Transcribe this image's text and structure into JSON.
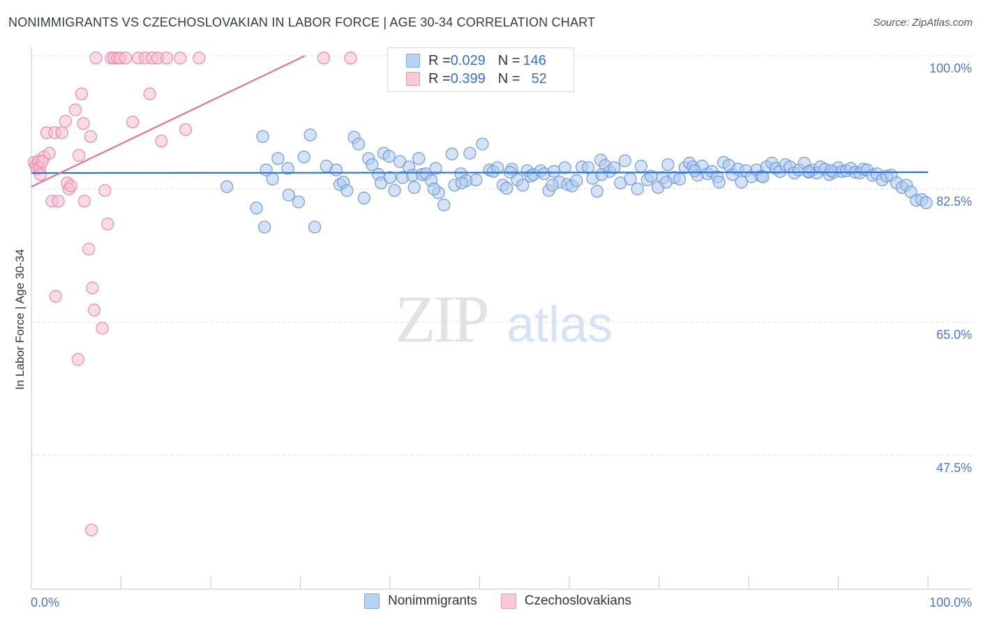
{
  "title": "NONIMMIGRANTS VS CZECHOSLOVAKIAN IN LABOR FORCE | AGE 30-34 CORRELATION CHART",
  "source": "Source: ZipAtlas.com",
  "watermark": {
    "zip": "ZIP",
    "atlas": "atlas"
  },
  "legend": {
    "rows": [
      {
        "r_label": "R = ",
        "r_value": "0.029",
        "n_label": "N = ",
        "n_value": "146",
        "color": "#a8c8f0"
      },
      {
        "r_label": "R = ",
        "r_value": "0.399",
        "n_label": "N = ",
        "n_value": "52",
        "color": "#f6b5c8"
      }
    ]
  },
  "colors": {
    "blue_fill": "#aecbf0",
    "blue_stroke": "#6f9ad8",
    "blue_line": "#2f6fd0",
    "pink_fill": "#f7c0d0",
    "pink_stroke": "#e58aa8",
    "pink_line": "#e8709a",
    "grid": "#d8dde6",
    "axis_text": "#4a78c8"
  },
  "chart_data": {
    "type": "scatter",
    "title": "NONIMMIGRANTS VS CZECHOSLOVAKIAN IN LABOR FORCE | AGE 30-34 CORRELATION CHART",
    "xlabel": "",
    "ylabel": "In Labor Force | Age 30-34",
    "xlim": [
      0,
      100
    ],
    "ylim": [
      30,
      101.5
    ],
    "x_ticks": [
      "0.0%",
      "100.0%"
    ],
    "y_ticks": [
      {
        "value": 100.0,
        "label": "100.0%"
      },
      {
        "value": 82.5,
        "label": "82.5%"
      },
      {
        "value": 65.0,
        "label": "65.0%"
      },
      {
        "value": 47.5,
        "label": "47.5%"
      }
    ],
    "grid": true,
    "legend_position": "bottom-center",
    "series": [
      {
        "name": "Nonimmigrants",
        "r": 0.029,
        "n": 146,
        "trend": {
          "x": [
            0,
            100
          ],
          "y": [
            84.6,
            84.7
          ]
        },
        "points": [
          [
            21.8,
            82.8
          ],
          [
            25.1,
            80.0
          ],
          [
            25.8,
            89.4
          ],
          [
            26.2,
            85.0
          ],
          [
            26.0,
            77.5
          ],
          [
            26.9,
            83.8
          ],
          [
            27.5,
            86.5
          ],
          [
            28.6,
            85.2
          ],
          [
            28.7,
            81.7
          ],
          [
            29.8,
            80.8
          ],
          [
            30.4,
            86.7
          ],
          [
            31.1,
            89.6
          ],
          [
            31.6,
            77.5
          ],
          [
            32.9,
            85.5
          ],
          [
            34.0,
            85.0
          ],
          [
            34.4,
            83.1
          ],
          [
            34.8,
            83.4
          ],
          [
            35.2,
            82.3
          ],
          [
            36.0,
            89.3
          ],
          [
            36.5,
            88.4
          ],
          [
            37.1,
            81.3
          ],
          [
            37.6,
            86.5
          ],
          [
            38.0,
            85.7
          ],
          [
            38.7,
            84.4
          ],
          [
            39.3,
            87.2
          ],
          [
            39.9,
            86.8
          ],
          [
            39.0,
            83.3
          ],
          [
            40.5,
            82.3
          ],
          [
            41.1,
            86.1
          ],
          [
            41.4,
            84.0
          ],
          [
            42.1,
            85.4
          ],
          [
            42.5,
            84.3
          ],
          [
            43.2,
            86.5
          ],
          [
            43.6,
            84.4
          ],
          [
            44.0,
            84.5
          ],
          [
            44.6,
            83.6
          ],
          [
            45.1,
            85.2
          ],
          [
            45.4,
            82.0
          ],
          [
            46.0,
            80.4
          ],
          [
            46.9,
            87.1
          ],
          [
            47.2,
            83.0
          ],
          [
            47.9,
            84.5
          ],
          [
            48.5,
            83.6
          ],
          [
            48.9,
            87.2
          ],
          [
            49.6,
            83.7
          ],
          [
            50.3,
            88.4
          ],
          [
            51.1,
            85.0
          ],
          [
            51.5,
            84.8
          ],
          [
            52.0,
            85.3
          ],
          [
            52.6,
            83.0
          ],
          [
            53.0,
            82.6
          ],
          [
            53.6,
            85.1
          ],
          [
            54.2,
            83.7
          ],
          [
            54.8,
            83.0
          ],
          [
            55.3,
            84.9
          ],
          [
            55.7,
            84.2
          ],
          [
            56.0,
            84.4
          ],
          [
            56.8,
            84.9
          ],
          [
            57.2,
            84.5
          ],
          [
            57.7,
            82.3
          ],
          [
            58.3,
            84.8
          ],
          [
            58.9,
            83.4
          ],
          [
            59.5,
            85.3
          ],
          [
            59.8,
            83.1
          ],
          [
            60.3,
            82.9
          ],
          [
            60.8,
            83.6
          ],
          [
            61.4,
            85.4
          ],
          [
            62.1,
            85.3
          ],
          [
            62.6,
            83.9
          ],
          [
            63.1,
            82.2
          ],
          [
            63.5,
            86.3
          ],
          [
            64.0,
            85.6
          ],
          [
            64.5,
            84.8
          ],
          [
            65.0,
            85.3
          ],
          [
            65.7,
            83.3
          ],
          [
            66.2,
            86.2
          ],
          [
            66.8,
            83.8
          ],
          [
            67.6,
            82.5
          ],
          [
            68.0,
            85.5
          ],
          [
            68.7,
            83.7
          ],
          [
            69.1,
            84.2
          ],
          [
            69.9,
            82.7
          ],
          [
            70.4,
            84.0
          ],
          [
            71.0,
            85.7
          ],
          [
            71.7,
            84.0
          ],
          [
            72.3,
            83.8
          ],
          [
            72.9,
            85.3
          ],
          [
            73.4,
            85.9
          ],
          [
            73.8,
            85.4
          ],
          [
            74.3,
            84.3
          ],
          [
            74.8,
            85.5
          ],
          [
            75.4,
            84.5
          ],
          [
            75.9,
            84.8
          ],
          [
            76.5,
            84.1
          ],
          [
            77.2,
            86.0
          ],
          [
            77.8,
            85.6
          ],
          [
            78.2,
            84.4
          ],
          [
            78.8,
            85.1
          ],
          [
            79.2,
            83.4
          ],
          [
            79.7,
            84.9
          ],
          [
            80.3,
            84.1
          ],
          [
            80.9,
            85.0
          ],
          [
            81.4,
            84.2
          ],
          [
            82.0,
            85.4
          ],
          [
            82.6,
            85.9
          ],
          [
            83.0,
            85.2
          ],
          [
            83.5,
            84.8
          ],
          [
            84.1,
            85.7
          ],
          [
            84.6,
            85.4
          ],
          [
            85.1,
            84.6
          ],
          [
            85.6,
            85.0
          ],
          [
            86.2,
            85.9
          ],
          [
            86.7,
            84.7
          ],
          [
            87.1,
            85.0
          ],
          [
            87.6,
            84.6
          ],
          [
            88.0,
            85.4
          ],
          [
            88.5,
            85.1
          ],
          [
            89.0,
            84.4
          ],
          [
            89.5,
            84.7
          ],
          [
            90.0,
            85.3
          ],
          [
            90.4,
            84.8
          ],
          [
            90.9,
            84.9
          ],
          [
            91.4,
            85.2
          ],
          [
            91.9,
            84.7
          ],
          [
            92.4,
            84.6
          ],
          [
            92.8,
            85.1
          ],
          [
            93.2,
            85.0
          ],
          [
            93.8,
            84.3
          ],
          [
            94.3,
            84.5
          ],
          [
            94.9,
            83.7
          ],
          [
            95.4,
            84.2
          ],
          [
            95.9,
            84.3
          ],
          [
            96.5,
            83.3
          ],
          [
            97.1,
            82.7
          ],
          [
            97.6,
            83.0
          ],
          [
            98.1,
            82.1
          ],
          [
            98.7,
            81.0
          ],
          [
            99.3,
            81.1
          ],
          [
            99.8,
            80.7
          ],
          [
            63.6,
            84.4
          ],
          [
            70.8,
            83.4
          ],
          [
            74.0,
            84.9
          ],
          [
            76.7,
            83.4
          ],
          [
            81.6,
            84.1
          ],
          [
            86.7,
            84.8
          ],
          [
            89.2,
            84.9
          ],
          [
            58.1,
            83.0
          ],
          [
            53.4,
            84.7
          ],
          [
            48.0,
            83.3
          ],
          [
            42.7,
            82.7
          ],
          [
            40.0,
            84.0
          ],
          [
            44.9,
            82.5
          ]
        ]
      },
      {
        "name": "Czechoslovakians",
        "r": 0.399,
        "n": 52,
        "trend": {
          "x": [
            0,
            30.5
          ],
          "y": [
            82.8,
            100.0
          ]
        },
        "points": [
          [
            0.3,
            86.0
          ],
          [
            0.5,
            85.6
          ],
          [
            0.6,
            85.1
          ],
          [
            0.8,
            86.2
          ],
          [
            0.9,
            85.3
          ],
          [
            1.0,
            84.4
          ],
          [
            1.4,
            86.7
          ],
          [
            1.7,
            89.9
          ],
          [
            2.0,
            87.2
          ],
          [
            2.3,
            80.9
          ],
          [
            2.6,
            89.9
          ],
          [
            3.0,
            80.9
          ],
          [
            3.4,
            89.9
          ],
          [
            3.8,
            91.4
          ],
          [
            4.0,
            83.3
          ],
          [
            4.2,
            82.5
          ],
          [
            4.4,
            82.9
          ],
          [
            4.9,
            92.9
          ],
          [
            5.3,
            86.9
          ],
          [
            5.6,
            95.0
          ],
          [
            5.8,
            91.1
          ],
          [
            5.9,
            80.9
          ],
          [
            6.4,
            74.6
          ],
          [
            6.6,
            89.4
          ],
          [
            6.8,
            69.5
          ],
          [
            7.0,
            66.6
          ],
          [
            7.2,
            99.7
          ],
          [
            7.9,
            64.2
          ],
          [
            8.2,
            82.3
          ],
          [
            8.5,
            77.9
          ],
          [
            8.9,
            99.7
          ],
          [
            9.2,
            99.7
          ],
          [
            9.6,
            99.7
          ],
          [
            9.9,
            99.7
          ],
          [
            10.5,
            99.7
          ],
          [
            11.3,
            91.3
          ],
          [
            11.9,
            99.7
          ],
          [
            12.7,
            99.7
          ],
          [
            13.2,
            95.0
          ],
          [
            13.5,
            99.7
          ],
          [
            14.1,
            99.7
          ],
          [
            14.5,
            88.8
          ],
          [
            15.1,
            99.7
          ],
          [
            16.6,
            99.7
          ],
          [
            17.2,
            90.3
          ],
          [
            18.7,
            99.7
          ],
          [
            2.7,
            68.4
          ],
          [
            1.2,
            86.1
          ],
          [
            5.2,
            60.1
          ],
          [
            6.7,
            37.7
          ],
          [
            32.6,
            99.7
          ],
          [
            35.6,
            99.7
          ]
        ]
      }
    ]
  }
}
